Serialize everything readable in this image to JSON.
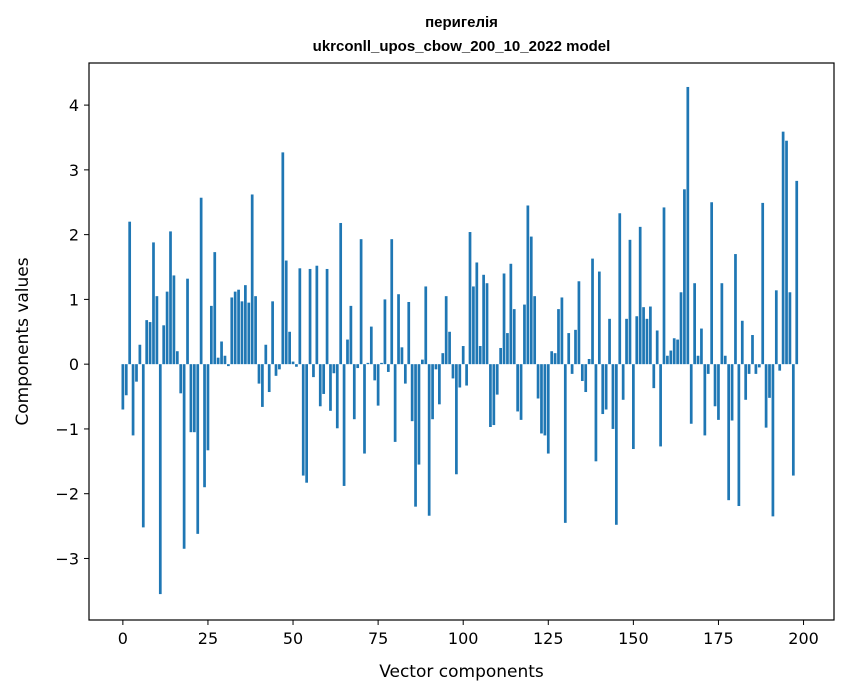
{
  "chart_data": {
    "type": "bar",
    "title_line1": "перигелія",
    "title_line2": "ukrconll_upos_cbow_200_10_2022 model",
    "xlabel": "Vector components",
    "ylabel": "Components values",
    "xlim": [
      -9.95,
      208.95
    ],
    "ylim": [
      -3.95,
      4.65
    ],
    "xticks": [
      0,
      25,
      50,
      75,
      100,
      125,
      150,
      175,
      200
    ],
    "xtick_labels": [
      "0",
      "25",
      "50",
      "75",
      "100",
      "125",
      "150",
      "175",
      "200"
    ],
    "yticks": [
      -3,
      -2,
      -1,
      0,
      1,
      2,
      3,
      4
    ],
    "ytick_labels": [
      "−3",
      "−2",
      "−1",
      "0",
      "1",
      "2",
      "3",
      "4"
    ],
    "bar_color": "#1f77b4",
    "values": [
      -0.7,
      -0.48,
      2.2,
      -1.1,
      -0.27,
      0.3,
      -2.52,
      0.68,
      0.65,
      1.88,
      1.05,
      -3.55,
      0.6,
      1.12,
      2.05,
      1.37,
      0.2,
      -0.45,
      -2.85,
      1.32,
      -1.05,
      -1.05,
      -2.62,
      2.57,
      -1.9,
      -1.33,
      0.9,
      1.73,
      0.1,
      0.35,
      0.13,
      -0.03,
      1.03,
      1.12,
      1.15,
      0.97,
      1.22,
      0.95,
      2.62,
      1.05,
      -0.3,
      -0.66,
      0.3,
      -0.43,
      0.97,
      -0.18,
      -0.08,
      3.27,
      1.6,
      0.5,
      0.04,
      -0.04,
      1.48,
      -1.72,
      -1.83,
      1.47,
      -0.2,
      1.52,
      -0.65,
      -0.46,
      1.47,
      -0.72,
      -0.14,
      -0.99,
      2.18,
      -1.88,
      0.38,
      0.9,
      -0.85,
      -0.06,
      1.93,
      -1.38,
      0.02,
      0.58,
      -0.25,
      -0.64,
      0.02,
      1.0,
      -0.12,
      1.93,
      -1.2,
      1.08,
      0.26,
      -0.3,
      0.96,
      -0.88,
      -2.2,
      -1.55,
      0.07,
      1.2,
      -2.34,
      -0.85,
      -0.08,
      -0.62,
      0.17,
      1.05,
      0.5,
      -0.22,
      -1.7,
      -0.36,
      0.28,
      -0.33,
      2.04,
      1.2,
      1.57,
      0.28,
      1.38,
      1.25,
      -0.97,
      -0.94,
      -0.47,
      0.25,
      1.4,
      0.48,
      1.55,
      0.85,
      -0.73,
      -0.86,
      0.92,
      2.45,
      1.97,
      1.05,
      -0.53,
      -1.07,
      -1.1,
      -1.38,
      0.2,
      0.17,
      0.85,
      1.03,
      -2.45,
      0.48,
      -0.15,
      0.53,
      1.28,
      -0.26,
      -0.43,
      0.08,
      1.63,
      -1.5,
      1.43,
      -0.77,
      -0.7,
      0.7,
      -1.0,
      -2.48,
      2.33,
      -0.55,
      0.7,
      1.92,
      -1.31,
      0.74,
      2.12,
      0.88,
      0.7,
      0.89,
      -0.37,
      0.52,
      -1.27,
      2.42,
      0.13,
      0.21,
      0.4,
      0.38,
      1.11,
      2.7,
      4.28,
      -0.92,
      1.25,
      0.13,
      0.55,
      -1.1,
      -0.15,
      2.5,
      -0.65,
      -0.86,
      1.25,
      0.13,
      -2.1,
      -0.87,
      1.7,
      -2.19,
      0.67,
      -0.55,
      -0.15,
      0.45,
      -0.15,
      -0.05,
      2.49,
      -0.98,
      -0.52,
      -2.35,
      1.14,
      -0.1,
      3.59,
      3.45,
      1.11,
      -1.72,
      2.83
    ]
  }
}
